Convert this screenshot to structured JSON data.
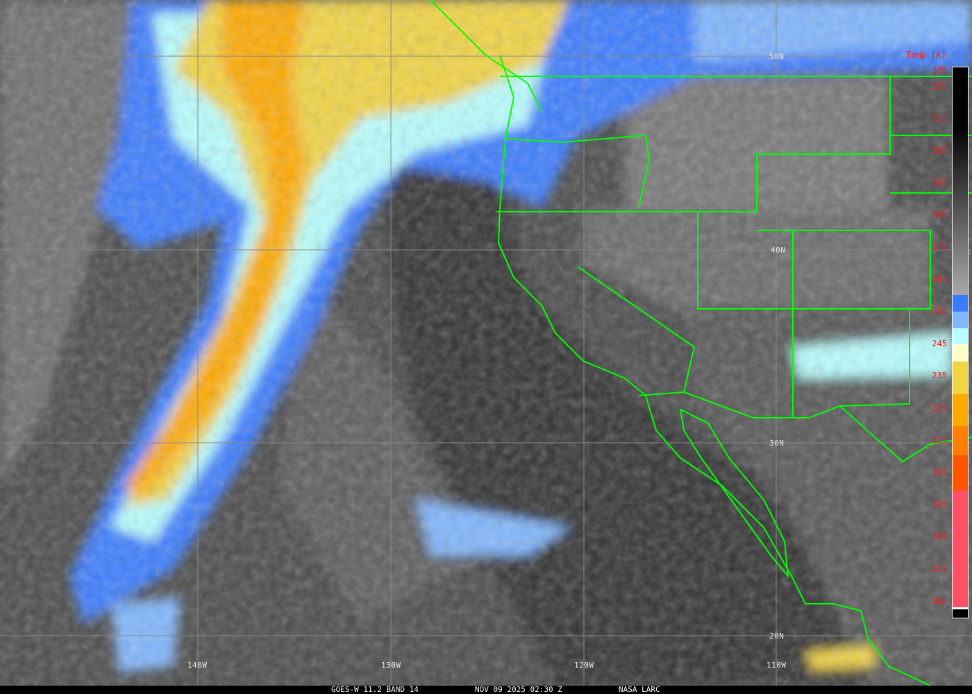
{
  "caption": {
    "satellite": "GOES-W 11.2 BAND 14",
    "datetime": "NOV 09 2025 02:30 Z",
    "source": "NASA LARC"
  },
  "grid": {
    "latitudes": [
      "50N",
      "40N",
      "30N",
      "20N"
    ],
    "longitudes": [
      "140W",
      "130W",
      "120W",
      "110W"
    ]
  },
  "colorbar": {
    "title": "Temp [K]",
    "ticks": [
      "330",
      "325",
      "315",
      "305",
      "295",
      "285",
      "275",
      "265",
      "255",
      "245",
      "235",
      "225",
      "215",
      "205",
      "195",
      "185",
      "175",
      "165"
    ],
    "segments": [
      {
        "range": "330-260",
        "color": "gradient #000000-#a8a8a8"
      },
      {
        "range": "260-255",
        "color": "#3a7cff"
      },
      {
        "range": "255-250",
        "color": "#7fb6ff"
      },
      {
        "range": "250-245",
        "color": "#b8ffff"
      },
      {
        "range": "245-240",
        "color": "#ffffc8"
      },
      {
        "range": "240-230",
        "color": "#f2d442"
      },
      {
        "range": "230-220",
        "color": "#ffaa00"
      },
      {
        "range": "220-212",
        "color": "#ff8000"
      },
      {
        "range": "212-200",
        "color": "#ff5500"
      },
      {
        "range": "200-165",
        "color": "#ff5066"
      }
    ]
  },
  "colors": {
    "borders": "#00ff00",
    "gridlines": "#888888",
    "labels_colorbar": "#ff1a1a"
  }
}
